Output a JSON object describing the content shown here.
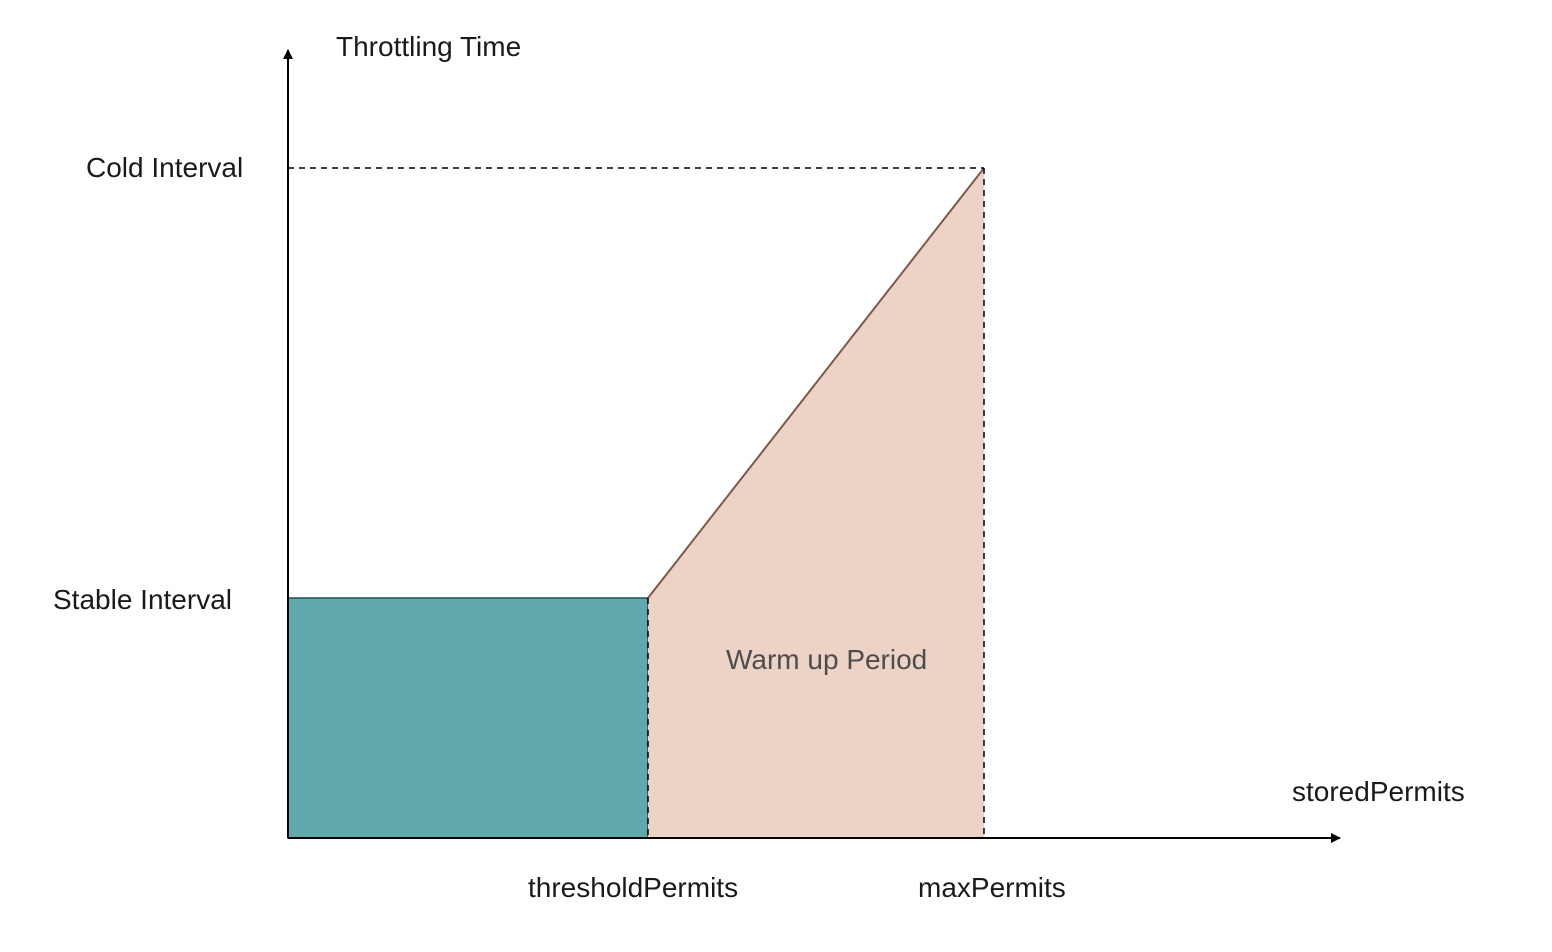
{
  "labels": {
    "y_axis": "Throttling Time",
    "x_axis": "storedPermits",
    "cold_interval": "Cold Interval",
    "stable_interval": "Stable Interval",
    "threshold_permits": "thresholdPermits",
    "max_permits": "maxPermits",
    "warm_up_period": "Warm up Period"
  },
  "colors": {
    "stable_region_fill": "#5fa8ac",
    "warmup_region_fill": "#edd3c6",
    "warmup_edge": "#7a5a4a",
    "axis": "#000000"
  }
}
